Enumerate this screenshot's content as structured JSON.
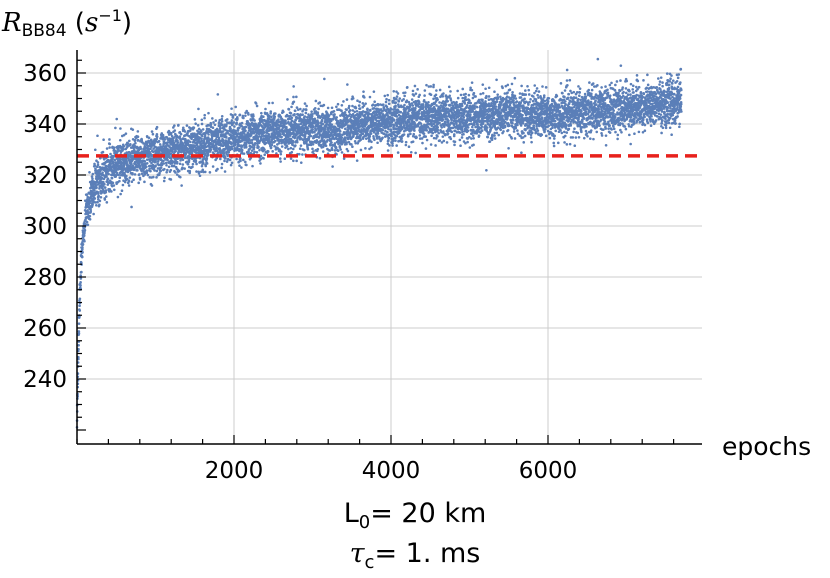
{
  "chart_data": {
    "type": "scatter",
    "ylabel": {
      "symbol": "R",
      "subscript": "BB84",
      "unit_base": "s",
      "unit_exp": "−1"
    },
    "xlabel": "epochs",
    "xlim": [
      0,
      7800
    ],
    "ylim": [
      217,
      368
    ],
    "x_ticks": [
      2000,
      4000,
      6000
    ],
    "y_ticks": [
      240,
      260,
      280,
      300,
      320,
      340,
      360
    ],
    "reference_line": {
      "y": 327.5,
      "color": "#e8211c",
      "style": "dashed"
    },
    "series": [
      {
        "color": "#5b7fb8",
        "n_points": 7700,
        "trend": [
          [
            0,
            222
          ],
          [
            10,
            240
          ],
          [
            30,
            268
          ],
          [
            60,
            290
          ],
          [
            120,
            306
          ],
          [
            250,
            318
          ],
          [
            500,
            324
          ],
          [
            1000,
            328
          ],
          [
            1500,
            331
          ],
          [
            2000,
            334
          ],
          [
            2500,
            337
          ],
          [
            3000,
            338
          ],
          [
            3300,
            337
          ],
          [
            3600,
            340
          ],
          [
            4000,
            341
          ],
          [
            4500,
            343
          ],
          [
            5000,
            343
          ],
          [
            5500,
            344
          ],
          [
            6000,
            343
          ],
          [
            6500,
            345
          ],
          [
            7000,
            346
          ],
          [
            7500,
            348
          ],
          [
            7700,
            349
          ]
        ],
        "scatter_sd": 4.5
      }
    ]
  },
  "caption": {
    "line1": {
      "symbol": "L",
      "subscript": "0",
      "rest": "= 20 km"
    },
    "line2": {
      "symbol": "τ",
      "subscript": "c",
      "rest": "= 1. ms"
    }
  }
}
